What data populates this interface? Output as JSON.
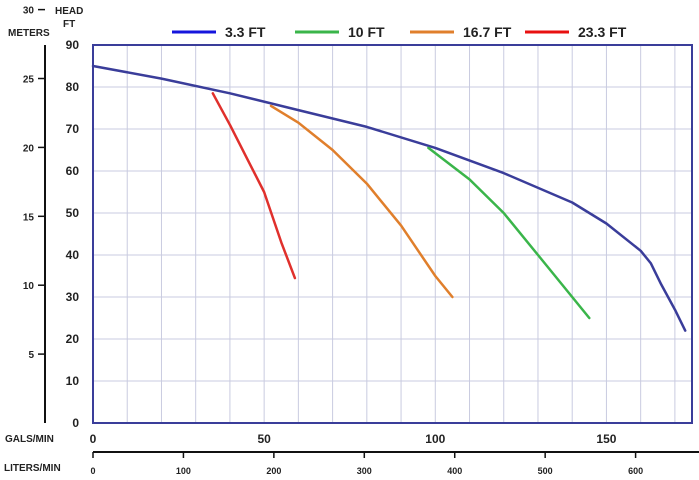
{
  "chart_data": {
    "type": "line",
    "legend_position": "top",
    "grid": true,
    "axes": {
      "head_ft": {
        "title_line1": "HEAD",
        "title_line2": "FT",
        "range": [
          0,
          90
        ],
        "ticks": [
          "0",
          "10",
          "20",
          "30",
          "40",
          "50",
          "60",
          "70",
          "80",
          "90"
        ]
      },
      "meters": {
        "title": "METERS",
        "range": [
          0,
          27.43
        ],
        "ticks": [
          "5",
          "10",
          "15",
          "20",
          "25",
          "30"
        ]
      },
      "gals_min": {
        "title": "GALS/MIN",
        "range": [
          0,
          175
        ],
        "ticks": [
          "0",
          "50",
          "100",
          "150"
        ]
      },
      "liters_min": {
        "title": "LITERS/MIN",
        "ticks": [
          "0",
          "100",
          "200",
          "300",
          "400",
          "500",
          "600"
        ]
      }
    },
    "series": [
      {
        "name": "3.3 FT",
        "color": "#3a3d9a",
        "legend_color": "#1515dd",
        "x": [
          0,
          20,
          40,
          60,
          80,
          100,
          120,
          140,
          150,
          160,
          163,
          166,
          170,
          173
        ],
        "y": [
          85,
          82,
          78.5,
          74.5,
          70.5,
          65.5,
          59.5,
          52.5,
          47.5,
          41,
          38,
          33,
          27,
          22
        ]
      },
      {
        "name": "10 FT",
        "color": "#3ab54a",
        "legend_color": "#3ab54a",
        "x": [
          98,
          110,
          120,
          130,
          140,
          145
        ],
        "y": [
          65.5,
          58,
          50,
          40,
          30,
          25
        ]
      },
      {
        "name": "16.7 FT",
        "color": "#e07f2c",
        "legend_color": "#e07f2c",
        "x": [
          52,
          60,
          70,
          80,
          90,
          100,
          105
        ],
        "y": [
          75.5,
          71.5,
          65,
          57,
          47,
          35,
          30
        ]
      },
      {
        "name": "23.3 FT",
        "color": "#e0302c",
        "legend_color": "#e81010",
        "x": [
          35,
          40,
          45,
          50,
          55,
          59
        ],
        "y": [
          78.5,
          71,
          63,
          55,
          43,
          34.5
        ]
      }
    ]
  }
}
